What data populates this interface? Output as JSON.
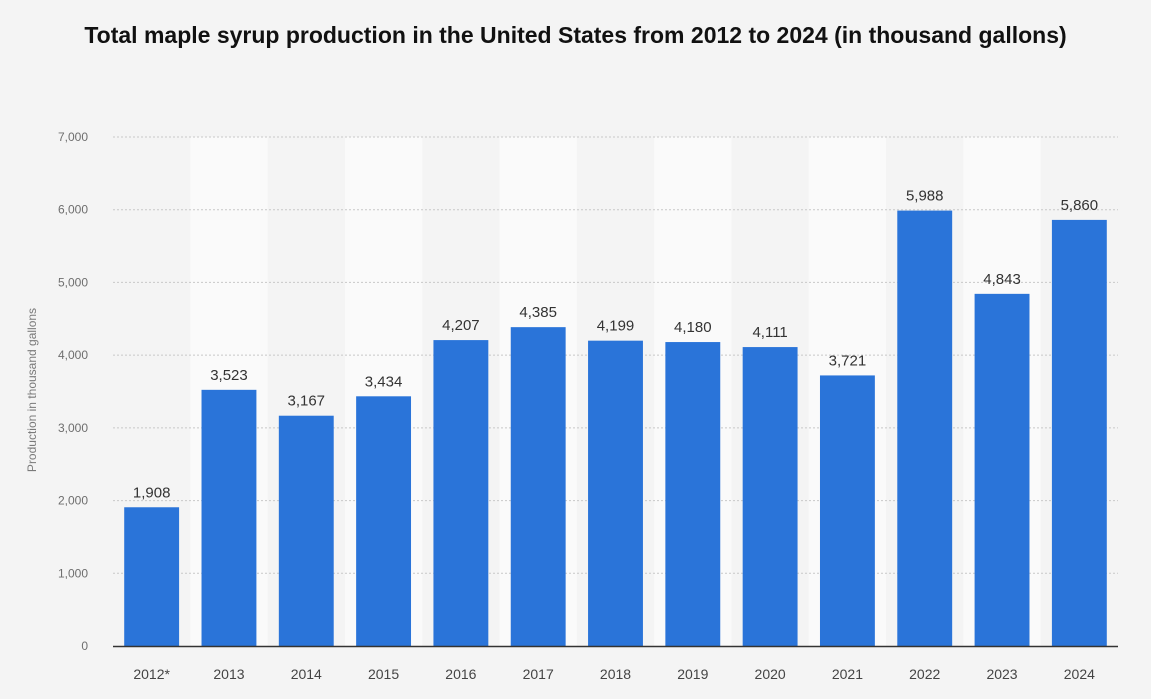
{
  "chart_data": {
    "type": "bar",
    "title": "Total maple syrup production in the United States from 2012 to 2024 (in thousand gallons)",
    "xlabel": "",
    "ylabel": "Production in thousand gallons",
    "categories": [
      "2012*",
      "2013",
      "2014",
      "2015",
      "2016",
      "2017",
      "2018",
      "2019",
      "2020",
      "2021",
      "2022",
      "2023",
      "2024"
    ],
    "values": [
      1908,
      3523,
      3167,
      3434,
      4207,
      4385,
      4199,
      4180,
      4111,
      3721,
      5988,
      4843,
      5860
    ],
    "value_labels": [
      "1,908",
      "3,523",
      "3,167",
      "3,434",
      "4,207",
      "4,385",
      "4,199",
      "4,180",
      "4,111",
      "3,721",
      "5,988",
      "4,843",
      "5,860"
    ],
    "yticks": [
      0,
      1000,
      2000,
      3000,
      4000,
      5000,
      6000,
      7000
    ],
    "ytick_labels": [
      "0",
      "1,000",
      "2,000",
      "3,000",
      "4,000",
      "5,000",
      "6,000",
      "7,000"
    ],
    "ylim": [
      0,
      7000
    ],
    "grid": true,
    "legend": "none",
    "colors": {
      "bar": "#2a74d9",
      "background": "#f4f4f4",
      "column_band": "#fafafa",
      "grid": "#c8c8c8",
      "axis": "#333333"
    }
  }
}
